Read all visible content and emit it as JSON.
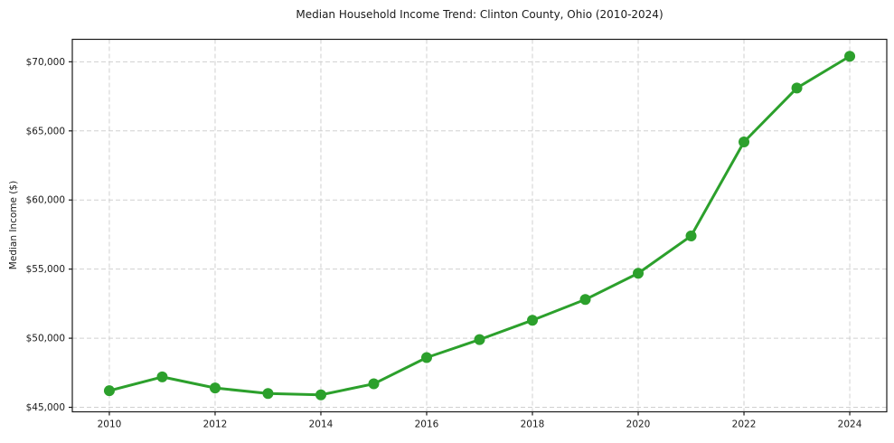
{
  "chart_data": {
    "type": "line",
    "title": "Median Household Income Trend: Clinton County, Ohio (2010-2024)",
    "xlabel": "",
    "ylabel": "Median Income ($)",
    "series": [
      {
        "name": "Median household income",
        "x": [
          2010,
          2011,
          2012,
          2013,
          2014,
          2015,
          2016,
          2017,
          2018,
          2019,
          2020,
          2021,
          2022,
          2023,
          2024
        ],
        "values": [
          46200,
          47200,
          46400,
          46000,
          45900,
          46700,
          48600,
          49900,
          51300,
          52800,
          54700,
          57400,
          64200,
          68100,
          70400
        ]
      }
    ],
    "xlim": [
      2009.3,
      2024.7
    ],
    "ylim": [
      44675,
      71625
    ],
    "x_ticks": [
      2010,
      2012,
      2014,
      2016,
      2018,
      2020,
      2022,
      2024
    ],
    "x_tick_labels": [
      "2010",
      "2012",
      "2014",
      "2016",
      "2018",
      "2020",
      "2022",
      "2024"
    ],
    "y_ticks": [
      45000,
      50000,
      55000,
      60000,
      65000,
      70000
    ],
    "y_tick_labels": [
      "$45,000",
      "$50,000",
      "$55,000",
      "$60,000",
      "$65,000",
      "$70,000"
    ],
    "grid": true,
    "legend": "none",
    "colors": {
      "line": "#2ca02c",
      "marker": "#2ca02c",
      "grid": "#d0d0d0",
      "spine": "#1a1a1a",
      "text": "#1a1a1a",
      "background": "#ffffff"
    }
  }
}
